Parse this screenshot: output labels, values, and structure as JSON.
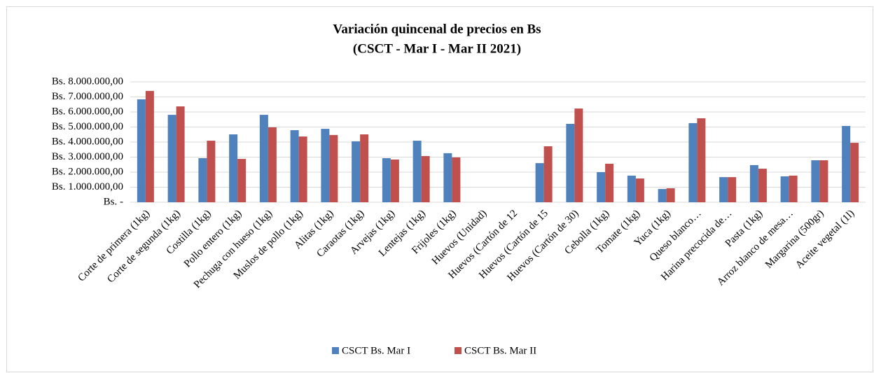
{
  "chart_data": {
    "type": "bar",
    "title": "Variación quincenal de precios en Bs",
    "subtitle": "(CSCT - Mar I - Mar II 2021)",
    "categories": [
      "Corte de primera (1kg)",
      "Corte de segunda (1kg)",
      "Costilla (1kg)",
      "Pollo entero (1kg)",
      "Pechuga con hueso (1kg)",
      "Muslos de pollo (1kg)",
      "Alitas (1kg)",
      "Caraotas (1kg)",
      "Arvejas (1kg)",
      "Lentejas (1kg)",
      "Frijoles (1kg)",
      "Huevos (Unidad)",
      "Huevos (Cartón de 12",
      "Huevos (Cartón de 15",
      "Huevos (Cartón de 30)",
      "Cebolla (1kg)",
      "Tomate (1kg)",
      "Yuca (1kg)",
      "Queso blanco…",
      "Harina precocida de…",
      "Pasta (1kg)",
      "Arroz blanco de mesa…",
      "Margarina (500gr)",
      "Aceite vegetal (1l)"
    ],
    "series": [
      {
        "name": "CSCT Bs. Mar I",
        "color": "#4f81bd",
        "values": [
          6840000,
          5810000,
          2930000,
          4510000,
          5810000,
          4790000,
          4880000,
          4050000,
          2930000,
          4090000,
          3260000,
          0,
          0,
          2600000,
          5210000,
          2000000,
          1770000,
          880000,
          5260000,
          1670000,
          2470000,
          1720000,
          2790000,
          5070000
        ]
      },
      {
        "name": "CSCT Bs. Mar II",
        "color": "#c0504d",
        "values": [
          7400000,
          6370000,
          4090000,
          2880000,
          4980000,
          4370000,
          4470000,
          4510000,
          2840000,
          3070000,
          2980000,
          0,
          0,
          3720000,
          6230000,
          2560000,
          1580000,
          930000,
          5580000,
          1670000,
          2230000,
          1770000,
          2790000,
          3950000
        ]
      }
    ],
    "ylim": [
      0,
      8000000
    ],
    "yticks": [
      {
        "value": 0,
        "label": "Bs. -"
      },
      {
        "value": 1000000,
        "label": "Bs. 1.000.000,00"
      },
      {
        "value": 2000000,
        "label": "Bs. 2.000.000,00"
      },
      {
        "value": 3000000,
        "label": "Bs. 3.000.000,00"
      },
      {
        "value": 4000000,
        "label": "Bs. 4.000.000,00"
      },
      {
        "value": 5000000,
        "label": "Bs. 5.000.000,00"
      },
      {
        "value": 6000000,
        "label": "Bs. 6.000.000,00"
      },
      {
        "value": 7000000,
        "label": "Bs. 7.000.000,00"
      },
      {
        "value": 8000000,
        "label": "Bs. 8.000.000,00"
      }
    ],
    "grid": true,
    "legend": "bottom"
  }
}
